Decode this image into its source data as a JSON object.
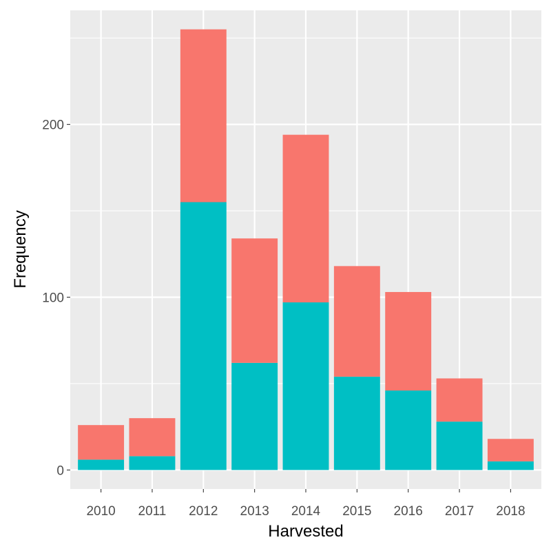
{
  "chart_data": {
    "type": "bar",
    "stacked": true,
    "categories": [
      "2010",
      "2011",
      "2012",
      "2013",
      "2014",
      "2015",
      "2016",
      "2017",
      "2018"
    ],
    "series": [
      {
        "values": [
          20,
          22,
          100,
          72,
          97,
          64,
          57,
          25,
          13
        ],
        "color": "#F8766D"
      },
      {
        "values": [
          6,
          8,
          155,
          62,
          97,
          54,
          46,
          28,
          5
        ],
        "color": "#00BFC4"
      }
    ],
    "xlabel": "Harvested",
    "ylabel": "Frequency",
    "yticks": [
      0,
      100,
      200
    ],
    "ylim": [
      -11,
      266
    ],
    "grid": true,
    "legend": "none",
    "panel_color": "#EBEBEB",
    "grid_color": "#FFFFFF"
  }
}
